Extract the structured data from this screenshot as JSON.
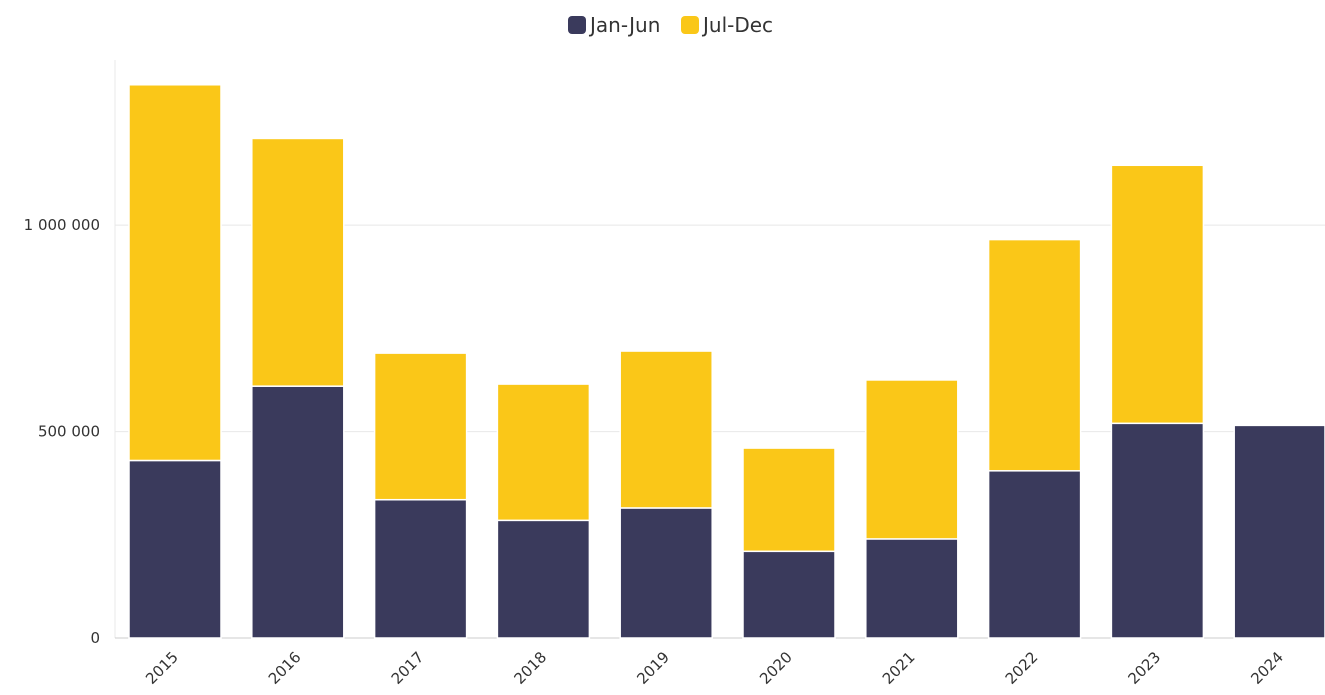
{
  "chart_data": {
    "type": "bar",
    "stacked": true,
    "title": "",
    "xlabel": "",
    "ylabel": "",
    "categories": [
      "2015",
      "2016",
      "2017",
      "2018",
      "2019",
      "2020",
      "2021",
      "2022",
      "2023",
      "2024"
    ],
    "series": [
      {
        "name": "Jan-Jun",
        "color": "#3a3a5c",
        "values": [
          430000,
          610000,
          335000,
          285000,
          315000,
          210000,
          240000,
          405000,
          520000,
          515000
        ]
      },
      {
        "name": "Jul-Dec",
        "color": "#fac718",
        "values": [
          910000,
          600000,
          355000,
          330000,
          380000,
          250000,
          385000,
          560000,
          625000,
          0
        ]
      }
    ],
    "y_ticks": [
      {
        "value": 0,
        "label": "0"
      },
      {
        "value": 500000,
        "label": "500 000"
      },
      {
        "value": 1000000,
        "label": "1 000 000"
      }
    ],
    "ylim": [
      0,
      1400000
    ],
    "grid": true,
    "legend_position": "top-center"
  }
}
